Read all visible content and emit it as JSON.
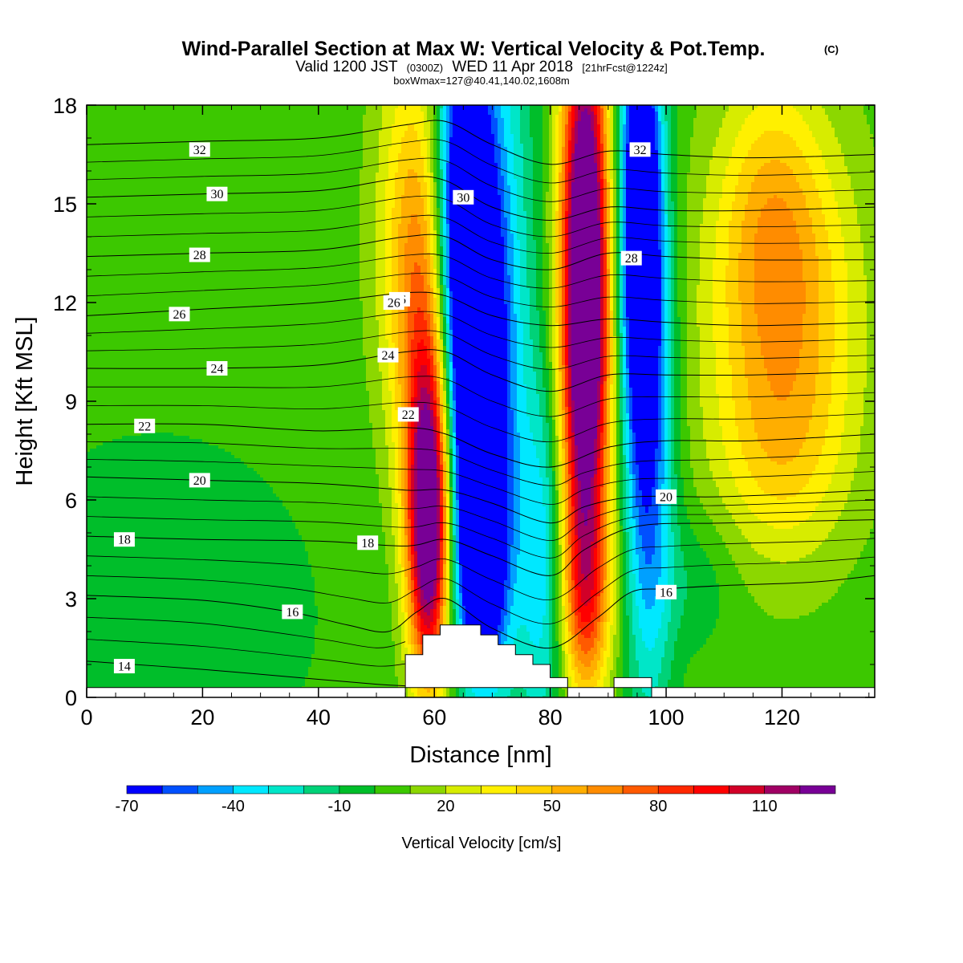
{
  "header": {
    "title": "Wind-Parallel Section at Max W: Vertical Velocity & Pot.Temp.",
    "copyright_mark": "(C)",
    "valid_prefix": "Valid 1200 JST",
    "valid_utc": "(0300Z)",
    "valid_date": "WED 11 Apr 2018",
    "forecast": "[21hrFcst@1224z]",
    "box_info": "boxWmax=127@40.41,140.02,1608m"
  },
  "chart_data": {
    "type": "heatmap",
    "xlabel": "Distance [nm]",
    "ylabel": "Height [Kft MSL]",
    "xlim": [
      0,
      136
    ],
    "ylim": [
      0,
      18
    ],
    "x_ticks": [
      0,
      20,
      40,
      60,
      80,
      100,
      120
    ],
    "y_ticks": [
      0,
      3,
      6,
      9,
      12,
      15,
      18
    ],
    "colorbar": {
      "title": "Vertical Velocity [cm/s]",
      "min": -70,
      "max": 130,
      "step": 10,
      "labeled_ticks": [
        -70,
        -40,
        -10,
        20,
        50,
        80,
        110
      ],
      "colors": [
        "#0000ff",
        "#0050ff",
        "#00a0ff",
        "#00e8ff",
        "#00e6c8",
        "#00d278",
        "#00be2a",
        "#3cc800",
        "#8cd700",
        "#d7ec00",
        "#fff000",
        "#ffd200",
        "#ffae00",
        "#ff8c00",
        "#ff5a00",
        "#ff2800",
        "#ff0000",
        "#d20028",
        "#a00064",
        "#780096"
      ]
    },
    "velocity_features": [
      {
        "x": 59,
        "y": 5,
        "sx": 2.4,
        "sy": 3.2,
        "value": 127
      },
      {
        "x": 59,
        "y": 9,
        "sx": 3.5,
        "sy": 4.5,
        "value": 55
      },
      {
        "x": 56.5,
        "y": 14,
        "sx": 4.5,
        "sy": 4.5,
        "value": 48
      },
      {
        "x": 65,
        "y": 15,
        "sx": 3.5,
        "sy": 4.5,
        "value": -95
      },
      {
        "x": 67,
        "y": 9,
        "sx": 3.5,
        "sy": 4,
        "value": -80
      },
      {
        "x": 68,
        "y": 4,
        "sx": 3,
        "sy": 2.5,
        "value": -75
      },
      {
        "x": 72,
        "y": 12,
        "sx": 4,
        "sy": 9,
        "value": -30
      },
      {
        "x": 79,
        "y": 4,
        "sx": 3,
        "sy": 4,
        "value": -35
      },
      {
        "x": 86,
        "y": 15,
        "sx": 2.8,
        "sy": 5,
        "value": 125
      },
      {
        "x": 86,
        "y": 9,
        "sx": 3,
        "sy": 4.5,
        "value": 100
      },
      {
        "x": 86,
        "y": 3,
        "sx": 3.2,
        "sy": 2.2,
        "value": 60
      },
      {
        "x": 95.5,
        "y": 15,
        "sx": 2.5,
        "sy": 4.5,
        "value": -90
      },
      {
        "x": 97,
        "y": 8,
        "sx": 3,
        "sy": 6,
        "value": -55
      },
      {
        "x": 120,
        "y": 11.5,
        "sx": 9,
        "sy": 4,
        "value": 60
      },
      {
        "x": 120,
        "y": 7,
        "sx": 8,
        "sy": 2,
        "value": 20
      },
      {
        "x": 118,
        "y": 15.5,
        "sx": 6,
        "sy": 2.5,
        "value": 25
      },
      {
        "x": 12,
        "y": 2.5,
        "sx": 20,
        "sy": 4,
        "value": -8
      },
      {
        "x": 105,
        "y": 3.5,
        "sx": 5,
        "sy": 1.5,
        "value": -8
      }
    ],
    "terrain": [
      [
        55,
        0
      ],
      [
        55,
        1.3
      ],
      [
        58,
        1.3
      ],
      [
        58,
        1.9
      ],
      [
        61,
        1.9
      ],
      [
        61,
        2.2
      ],
      [
        68,
        2.2
      ],
      [
        68,
        1.9
      ],
      [
        71,
        1.9
      ],
      [
        71,
        1.6
      ],
      [
        74,
        1.6
      ],
      [
        74,
        1.3
      ],
      [
        77,
        1.3
      ],
      [
        77,
        1.0
      ],
      [
        80,
        1.0
      ],
      [
        80,
        0.6
      ],
      [
        83,
        0.6
      ],
      [
        83,
        0
      ],
      [
        91,
        0
      ],
      [
        91,
        0.6
      ],
      [
        97.5,
        0.6
      ],
      [
        97.5,
        0
      ],
      [
        136,
        0
      ],
      [
        136,
        0.3
      ],
      [
        0,
        0.3
      ],
      [
        0,
        0
      ]
    ],
    "isentropes": [
      {
        "label": "14",
        "pts": [
          [
            0,
            1.1
          ],
          [
            20,
            0.85
          ],
          [
            40,
            0.55
          ],
          [
            50,
            0.4
          ],
          [
            55,
            0.35
          ]
        ],
        "label_at": [
          6.5,
          0.95
        ]
      },
      {
        "label": "16",
        "pts": [
          [
            0,
            3.1
          ],
          [
            20,
            2.95
          ],
          [
            35,
            2.6
          ],
          [
            45,
            2.2
          ],
          [
            52,
            2.0
          ],
          [
            57,
            2.6
          ],
          [
            62,
            3.0
          ],
          [
            70,
            2.1
          ],
          [
            80,
            1.5
          ],
          [
            88,
            2.4
          ],
          [
            94,
            3.2
          ],
          [
            100,
            3.3
          ],
          [
            110,
            3.4
          ],
          [
            125,
            3.5
          ],
          [
            136,
            3.7
          ]
        ],
        "label_at": [
          57.5,
          2.6
        ]
      },
      {
        "label": "18",
        "pts": [
          [
            0,
            4.9
          ],
          [
            20,
            4.8
          ],
          [
            40,
            4.75
          ],
          [
            55,
            4.6
          ],
          [
            62,
            4.8
          ],
          [
            70,
            4.3
          ],
          [
            80,
            3.7
          ],
          [
            86,
            4.5
          ],
          [
            95,
            5.2
          ],
          [
            110,
            5.3
          ],
          [
            136,
            5.4
          ]
        ],
        "label_at": [
          87.5,
          4.6
        ]
      },
      {
        "label": "20",
        "pts": [
          [
            0,
            6.7
          ],
          [
            20,
            6.6
          ],
          [
            40,
            6.5
          ],
          [
            55,
            6.3
          ],
          [
            62,
            6.3
          ],
          [
            70,
            5.9
          ],
          [
            80,
            5.3
          ],
          [
            86,
            5.8
          ],
          [
            95,
            6.1
          ],
          [
            110,
            6.1
          ],
          [
            136,
            6.3
          ]
        ],
        "label_at": [
          61.5,
          6.25
        ]
      },
      {
        "label": "22",
        "pts": [
          [
            0,
            8.3
          ],
          [
            20,
            8.3
          ],
          [
            40,
            8.1
          ],
          [
            55,
            8.2
          ],
          [
            62,
            8.0
          ],
          [
            70,
            7.4
          ],
          [
            80,
            7.0
          ],
          [
            90,
            7.6
          ],
          [
            100,
            7.8
          ],
          [
            115,
            7.8
          ],
          [
            136,
            8.0
          ]
        ],
        "label_at": [
          97.5,
          7.8
        ]
      },
      {
        "label": "24",
        "pts": [
          [
            0,
            10.0
          ],
          [
            20,
            10.0
          ],
          [
            40,
            10.1
          ],
          [
            55,
            10.5
          ],
          [
            62,
            10.5
          ],
          [
            70,
            9.8
          ],
          [
            80,
            9.3
          ],
          [
            90,
            9.8
          ],
          [
            100,
            9.8
          ],
          [
            115,
            9.8
          ],
          [
            136,
            9.9
          ]
        ],
        "label_at": [
          95,
          9.75
        ]
      },
      {
        "label": "26",
        "pts": [
          [
            0,
            11.6
          ],
          [
            20,
            11.8
          ],
          [
            40,
            12.0
          ],
          [
            55,
            12.3
          ],
          [
            62,
            12.2
          ],
          [
            70,
            11.6
          ],
          [
            80,
            11.3
          ],
          [
            90,
            11.5
          ],
          [
            100,
            11.4
          ],
          [
            115,
            11.3
          ],
          [
            136,
            11.4
          ]
        ],
        "label_at": [
          101,
          11.3
        ]
      },
      {
        "label": "28",
        "pts": [
          [
            0,
            13.4
          ],
          [
            20,
            13.5
          ],
          [
            40,
            13.6
          ],
          [
            55,
            14.0
          ],
          [
            62,
            14.0
          ],
          [
            70,
            13.3
          ],
          [
            80,
            13.0
          ],
          [
            90,
            13.5
          ],
          [
            100,
            13.4
          ],
          [
            115,
            13.3
          ],
          [
            136,
            13.3
          ]
        ],
        "label_at": [
          65,
          13.45
        ]
      },
      {
        "label": "30",
        "pts": [
          [
            0,
            15.2
          ],
          [
            20,
            15.3
          ],
          [
            40,
            15.4
          ],
          [
            55,
            15.8
          ],
          [
            62,
            15.7
          ],
          [
            70,
            14.9
          ],
          [
            80,
            14.5
          ],
          [
            90,
            14.9
          ],
          [
            100,
            14.8
          ],
          [
            115,
            14.8
          ],
          [
            136,
            14.9
          ]
        ],
        "label_at": [
          101.5,
          14.8
        ]
      },
      {
        "label": "32",
        "pts": [
          [
            0,
            16.8
          ],
          [
            20,
            16.9
          ],
          [
            40,
            17.0
          ],
          [
            55,
            17.4
          ],
          [
            62,
            17.5
          ],
          [
            70,
            16.8
          ],
          [
            80,
            16.2
          ],
          [
            90,
            16.6
          ],
          [
            100,
            16.5
          ],
          [
            115,
            16.4
          ],
          [
            136,
            16.5
          ]
        ],
        "label_at": [
          53,
          17.25
        ]
      }
    ],
    "isentrope_labels": [
      {
        "label": "32",
        "x": 19.5,
        "y": 16.65
      },
      {
        "label": "30",
        "x": 22.5,
        "y": 15.3
      },
      {
        "label": "28",
        "x": 19.5,
        "y": 13.45
      },
      {
        "label": "26",
        "x": 16,
        "y": 11.65
      },
      {
        "label": "24",
        "x": 22.5,
        "y": 10.0
      },
      {
        "label": "22",
        "x": 10,
        "y": 8.25
      },
      {
        "label": "20",
        "x": 19.5,
        "y": 6.6
      },
      {
        "label": "18",
        "x": 6.5,
        "y": 4.8
      },
      {
        "label": "16",
        "x": 35.5,
        "y": 2.6
      },
      {
        "label": "14",
        "x": 6.5,
        "y": 0.95
      },
      {
        "label": "18",
        "x": 48.5,
        "y": 4.7
      },
      {
        "label": "22",
        "x": 55.5,
        "y": 8.6
      },
      {
        "label": "24",
        "x": 52,
        "y": 10.4
      },
      {
        "label": "26",
        "x": 54,
        "y": 12.1
      },
      {
        "label": "30",
        "x": 65,
        "y": 15.2
      },
      {
        "label": "28",
        "x": 94,
        "y": 13.35
      },
      {
        "label": "32",
        "x": 95.5,
        "y": 16.65
      },
      {
        "label": "16",
        "x": 100,
        "y": 3.2
      },
      {
        "label": "20",
        "x": 100,
        "y": 6.1
      },
      {
        "label": "26",
        "x": 53,
        "y": 12.0
      }
    ]
  }
}
